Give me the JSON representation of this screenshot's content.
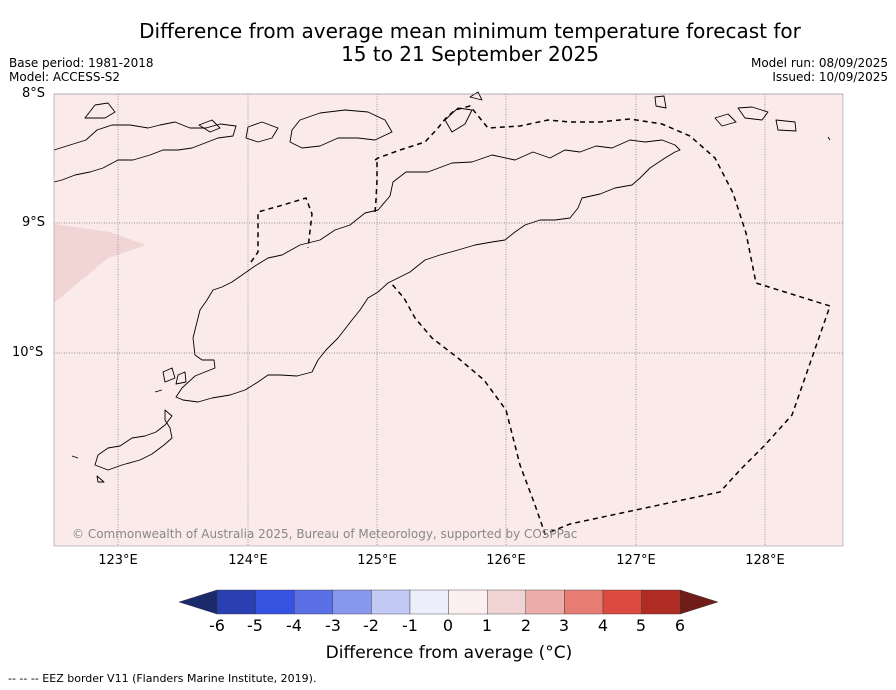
{
  "title_line1": "Difference from average mean minimum temperature forecast for",
  "title_line2": "15 to 21 September 2025",
  "meta_left": {
    "base_period": "Base period: 1981-2018",
    "model": "Model: ACCESS-S2"
  },
  "meta_right": {
    "model_run": "Model run: 08/09/2025",
    "issued": "Issued: 10/09/2025"
  },
  "map": {
    "lat_labels": [
      "8°S",
      "9°S",
      "10°S"
    ],
    "lon_labels": [
      "123°E",
      "124°E",
      "125°E",
      "126°E",
      "127°E",
      "128°E"
    ],
    "copyright": "© Commonwealth of Australia 2025, Bureau of Meteorology, supported by COSPPac",
    "background_anomaly_color": "#fbeaea",
    "patch_anomaly_color": "#f1d4d4"
  },
  "colorbar": {
    "ticks": [
      "-6",
      "-5",
      "-4",
      "-3",
      "-2",
      "-1",
      "0",
      "1",
      "2",
      "3",
      "4",
      "5",
      "6"
    ],
    "colors": [
      "#1b2a6b",
      "#2a3fb2",
      "#3553e0",
      "#5b70e6",
      "#8897ee",
      "#c3c9f5",
      "#eceffb",
      "#fcf0f0",
      "#f0d3d3",
      "#ecaca8",
      "#e67c74",
      "#dc4a3f",
      "#ae2c24",
      "#701d19"
    ],
    "label": "Difference from average (°C)"
  },
  "footnote": "--  --  -- EEZ border V11 (Flanders Marine Institute, 2019)."
}
